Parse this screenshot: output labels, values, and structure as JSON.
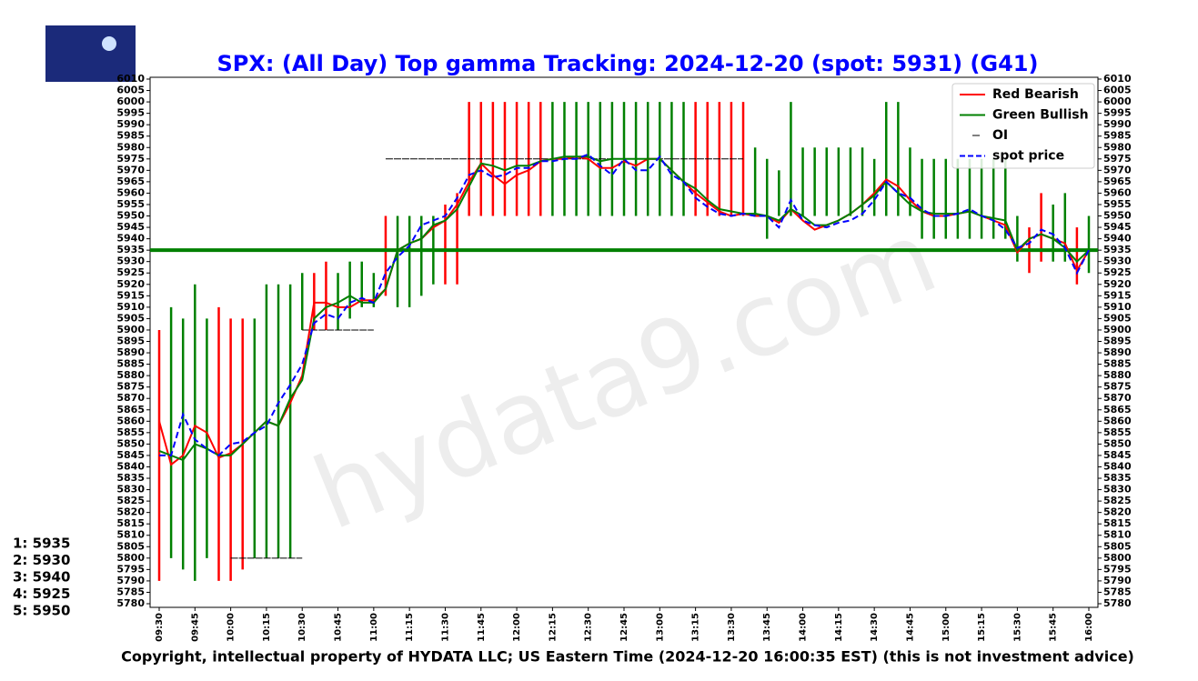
{
  "chart_data": {
    "type": "line",
    "title": "SPX: (All Day) Top gamma Tracking: 2024-12-20 (spot: 5931) (G41)",
    "footer": "Copyright, intellectual property of HYDATA LLC; US Eastern Time (2024-12-20 16:00:35 EST) (this is not investment advice)",
    "watermark": "hydata9.com",
    "top_levels": [
      "1: 5935",
      "2: 5930",
      "3: 5940",
      "4: 5925",
      "5: 5950"
    ],
    "categories": [
      "09:30",
      null,
      null,
      "09:45",
      null,
      null,
      "10:00",
      null,
      null,
      "10:15",
      null,
      null,
      "10:30",
      null,
      null,
      "10:45",
      null,
      null,
      "11:00",
      null,
      null,
      "11:15",
      null,
      null,
      "11:30",
      null,
      null,
      "11:45",
      null,
      null,
      "12:00",
      null,
      null,
      "12:15",
      null,
      null,
      "12:30",
      null,
      null,
      "12:45",
      null,
      null,
      "13:00",
      null,
      null,
      "13:15",
      null,
      null,
      "13:30",
      null,
      null,
      "13:45",
      null,
      null,
      "14:00",
      null,
      null,
      "14:15",
      null,
      null,
      "14:30",
      null,
      null,
      "14:45",
      null,
      null,
      "15:00",
      null,
      null,
      "15:15",
      null,
      null,
      "15:30",
      null,
      null,
      "15:45",
      null,
      null,
      "16:00"
    ],
    "series": [
      {
        "name": "Red Bearish",
        "color": "#ff0000",
        "dash": false,
        "values": [
          5860,
          5841,
          5845,
          5858,
          5855,
          5844,
          5846,
          5850,
          5855,
          5860,
          5858,
          5868,
          5880,
          5912,
          5912,
          5910,
          5910,
          5913,
          5913,
          5918,
          5935,
          5938,
          5940,
          5945,
          5948,
          5955,
          5965,
          5973,
          5968,
          5964,
          5968,
          5970,
          5974,
          5975,
          5975,
          5976,
          5975,
          5971,
          5971,
          5974,
          5972,
          5975,
          5975,
          5970,
          5965,
          5960,
          5956,
          5952,
          5950,
          5951,
          5950,
          5950,
          5947,
          5953,
          5948,
          5944,
          5946,
          5948,
          5951,
          5955,
          5960,
          5966,
          5963,
          5957,
          5952,
          5950,
          5950,
          5951,
          5952,
          5950,
          5948,
          5946,
          5934,
          5940,
          5942,
          5940,
          5938,
          5926,
          5935
        ]
      },
      {
        "name": "Green Bullish",
        "color": "#008000",
        "dash": false,
        "values": [
          5847,
          5845,
          5843,
          5850,
          5848,
          5845,
          5845,
          5850,
          5855,
          5860,
          5858,
          5870,
          5878,
          5905,
          5910,
          5912,
          5915,
          5912,
          5912,
          5918,
          5935,
          5938,
          5940,
          5946,
          5948,
          5953,
          5963,
          5973,
          5972,
          5970,
          5972,
          5972,
          5974,
          5975,
          5976,
          5976,
          5976,
          5974,
          5975,
          5975,
          5975,
          5975,
          5975,
          5970,
          5965,
          5962,
          5957,
          5953,
          5952,
          5951,
          5951,
          5950,
          5948,
          5953,
          5950,
          5946,
          5946,
          5948,
          5951,
          5955,
          5959,
          5965,
          5960,
          5955,
          5952,
          5951,
          5951,
          5951,
          5952,
          5950,
          5949,
          5948,
          5935,
          5940,
          5942,
          5940,
          5936,
          5930,
          5935
        ]
      },
      {
        "name": "spot price",
        "color": "#0000ff",
        "dash": true,
        "values": [
          5845,
          5845,
          5863,
          5852,
          5848,
          5845,
          5850,
          5851,
          5855,
          5858,
          5868,
          5876,
          5885,
          5903,
          5907,
          5905,
          5912,
          5914,
          5912,
          5925,
          5932,
          5937,
          5946,
          5948,
          5950,
          5958,
          5968,
          5970,
          5967,
          5968,
          5971,
          5971,
          5974,
          5974,
          5975,
          5975,
          5977,
          5972,
          5968,
          5975,
          5970,
          5970,
          5976,
          5968,
          5965,
          5958,
          5954,
          5951,
          5950,
          5951,
          5950,
          5950,
          5945,
          5957,
          5948,
          5946,
          5945,
          5947,
          5948,
          5951,
          5957,
          5965,
          5960,
          5958,
          5953,
          5950,
          5950,
          5951,
          5953,
          5950,
          5948,
          5944,
          5936,
          5938,
          5944,
          5942,
          5936,
          5925,
          5935
        ]
      }
    ],
    "oi": {
      "name": "OI",
      "color": "#000000",
      "levels": [
        {
          "value": 5800,
          "start": 6,
          "end": 12
        },
        {
          "value": 5900,
          "start": 12,
          "end": 18
        },
        {
          "value": 5975,
          "start": 19,
          "end": 49
        }
      ]
    },
    "gamma_level": {
      "value": 5935,
      "color": "#008000"
    },
    "ranges": {
      "low": [
        5790,
        5800,
        5795,
        5790,
        5800,
        5790,
        5790,
        5795,
        5800,
        5800,
        5800,
        5800,
        5900,
        5900,
        5900,
        5900,
        5905,
        5910,
        5910,
        5915,
        5910,
        5910,
        5915,
        5920,
        5920,
        5920,
        5950,
        5950,
        5950,
        5950,
        5950,
        5950,
        5950,
        5950,
        5950,
        5950,
        5950,
        5950,
        5950,
        5950,
        5950,
        5950,
        5950,
        5950,
        5950,
        5950,
        5950,
        5950,
        5950,
        5950,
        5950,
        5940,
        5950,
        5950,
        5950,
        5950,
        5950,
        5950,
        5950,
        5950,
        5950,
        5950,
        5950,
        5950,
        5940,
        5940,
        5940,
        5940,
        5940,
        5940,
        5940,
        5940,
        5930,
        5925,
        5930,
        5930,
        5930,
        5920,
        5925
      ],
      "high": [
        5900,
        5910,
        5905,
        5920,
        5905,
        5910,
        5905,
        5905,
        5905,
        5920,
        5920,
        5920,
        5925,
        5925,
        5930,
        5925,
        5930,
        5930,
        5925,
        5950,
        5950,
        5950,
        5950,
        5950,
        5955,
        5960,
        6000,
        6000,
        6000,
        6000,
        6000,
        6000,
        6000,
        6000,
        6000,
        6000,
        6000,
        6000,
        6000,
        6000,
        6000,
        6000,
        6000,
        6000,
        6000,
        6000,
        6000,
        6000,
        6000,
        6000,
        5980,
        5975,
        5970,
        6000,
        5980,
        5980,
        5980,
        5980,
        5980,
        5980,
        5975,
        6000,
        6000,
        5980,
        5975,
        5975,
        5975,
        5975,
        5975,
        5975,
        5975,
        5975,
        5950,
        5945,
        5960,
        5955,
        5960,
        5945,
        5950
      ],
      "colors": [
        "red",
        "green",
        "green",
        "green",
        "green",
        "red",
        "red",
        "red",
        "green",
        "green",
        "green",
        "green",
        "green",
        "red",
        "red",
        "green",
        "green",
        "green",
        "green",
        "red",
        "green",
        "green",
        "green",
        "green",
        "red",
        "red",
        "red",
        "red",
        "red",
        "red",
        "red",
        "red",
        "red",
        "green",
        "green",
        "green",
        "green",
        "green",
        "green",
        "green",
        "green",
        "green",
        "green",
        "green",
        "green",
        "red",
        "red",
        "red",
        "red",
        "red",
        "green",
        "green",
        "green",
        "green",
        "green",
        "green",
        "green",
        "green",
        "green",
        "green",
        "green",
        "green",
        "green",
        "green",
        "green",
        "green",
        "green",
        "green",
        "green",
        "green",
        "green",
        "green",
        "green",
        "red",
        "red",
        "green",
        "green",
        "red",
        "green"
      ]
    },
    "ylim": [
      5780,
      6010
    ],
    "yticks": [
      5780,
      5785,
      5790,
      5795,
      5800,
      5805,
      5810,
      5815,
      5820,
      5825,
      5830,
      5835,
      5840,
      5845,
      5850,
      5855,
      5860,
      5865,
      5870,
      5875,
      5880,
      5885,
      5890,
      5895,
      5900,
      5905,
      5910,
      5915,
      5920,
      5925,
      5930,
      5935,
      5940,
      5945,
      5950,
      5955,
      5960,
      5965,
      5970,
      5975,
      5980,
      5985,
      5990,
      5995,
      6000,
      6005,
      6010
    ],
    "legend": "upper right"
  }
}
